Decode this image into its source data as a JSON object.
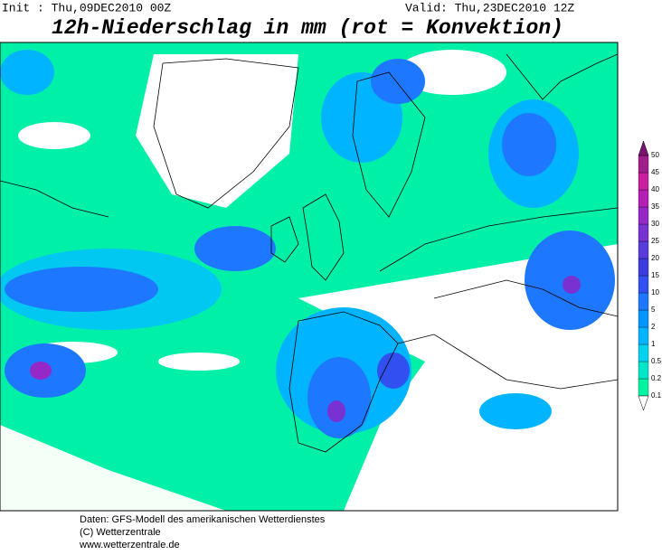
{
  "header": {
    "init": "Init : Thu,09DEC2010 00Z",
    "valid": "Valid: Thu,23DEC2010 12Z",
    "title": "12h-Niederschlag in mm (rot = Konvektion)"
  },
  "colorbar": {
    "levels": [
      "0.1",
      "0.2",
      "0.5",
      "1",
      "2",
      "5",
      "10",
      "15",
      "20",
      "25",
      "30",
      "35",
      "40",
      "45",
      "50"
    ],
    "colors": [
      "#00f5a0",
      "#00e6c8",
      "#00d2f0",
      "#00b4ff",
      "#0096ff",
      "#1e78ff",
      "#3250f0",
      "#3c3cdc",
      "#5a3cdc",
      "#7832d2",
      "#9628c8",
      "#b41eb4",
      "#c81ea0",
      "#a01e8c",
      "#7a1470"
    ],
    "below_color": "#ffffff"
  },
  "footer": [
    "Daten: GFS-Modell des amerikanischen Wetterdienstes",
    "(C) Wetterzentrale",
    "www.wetterzentrale.de"
  ]
}
